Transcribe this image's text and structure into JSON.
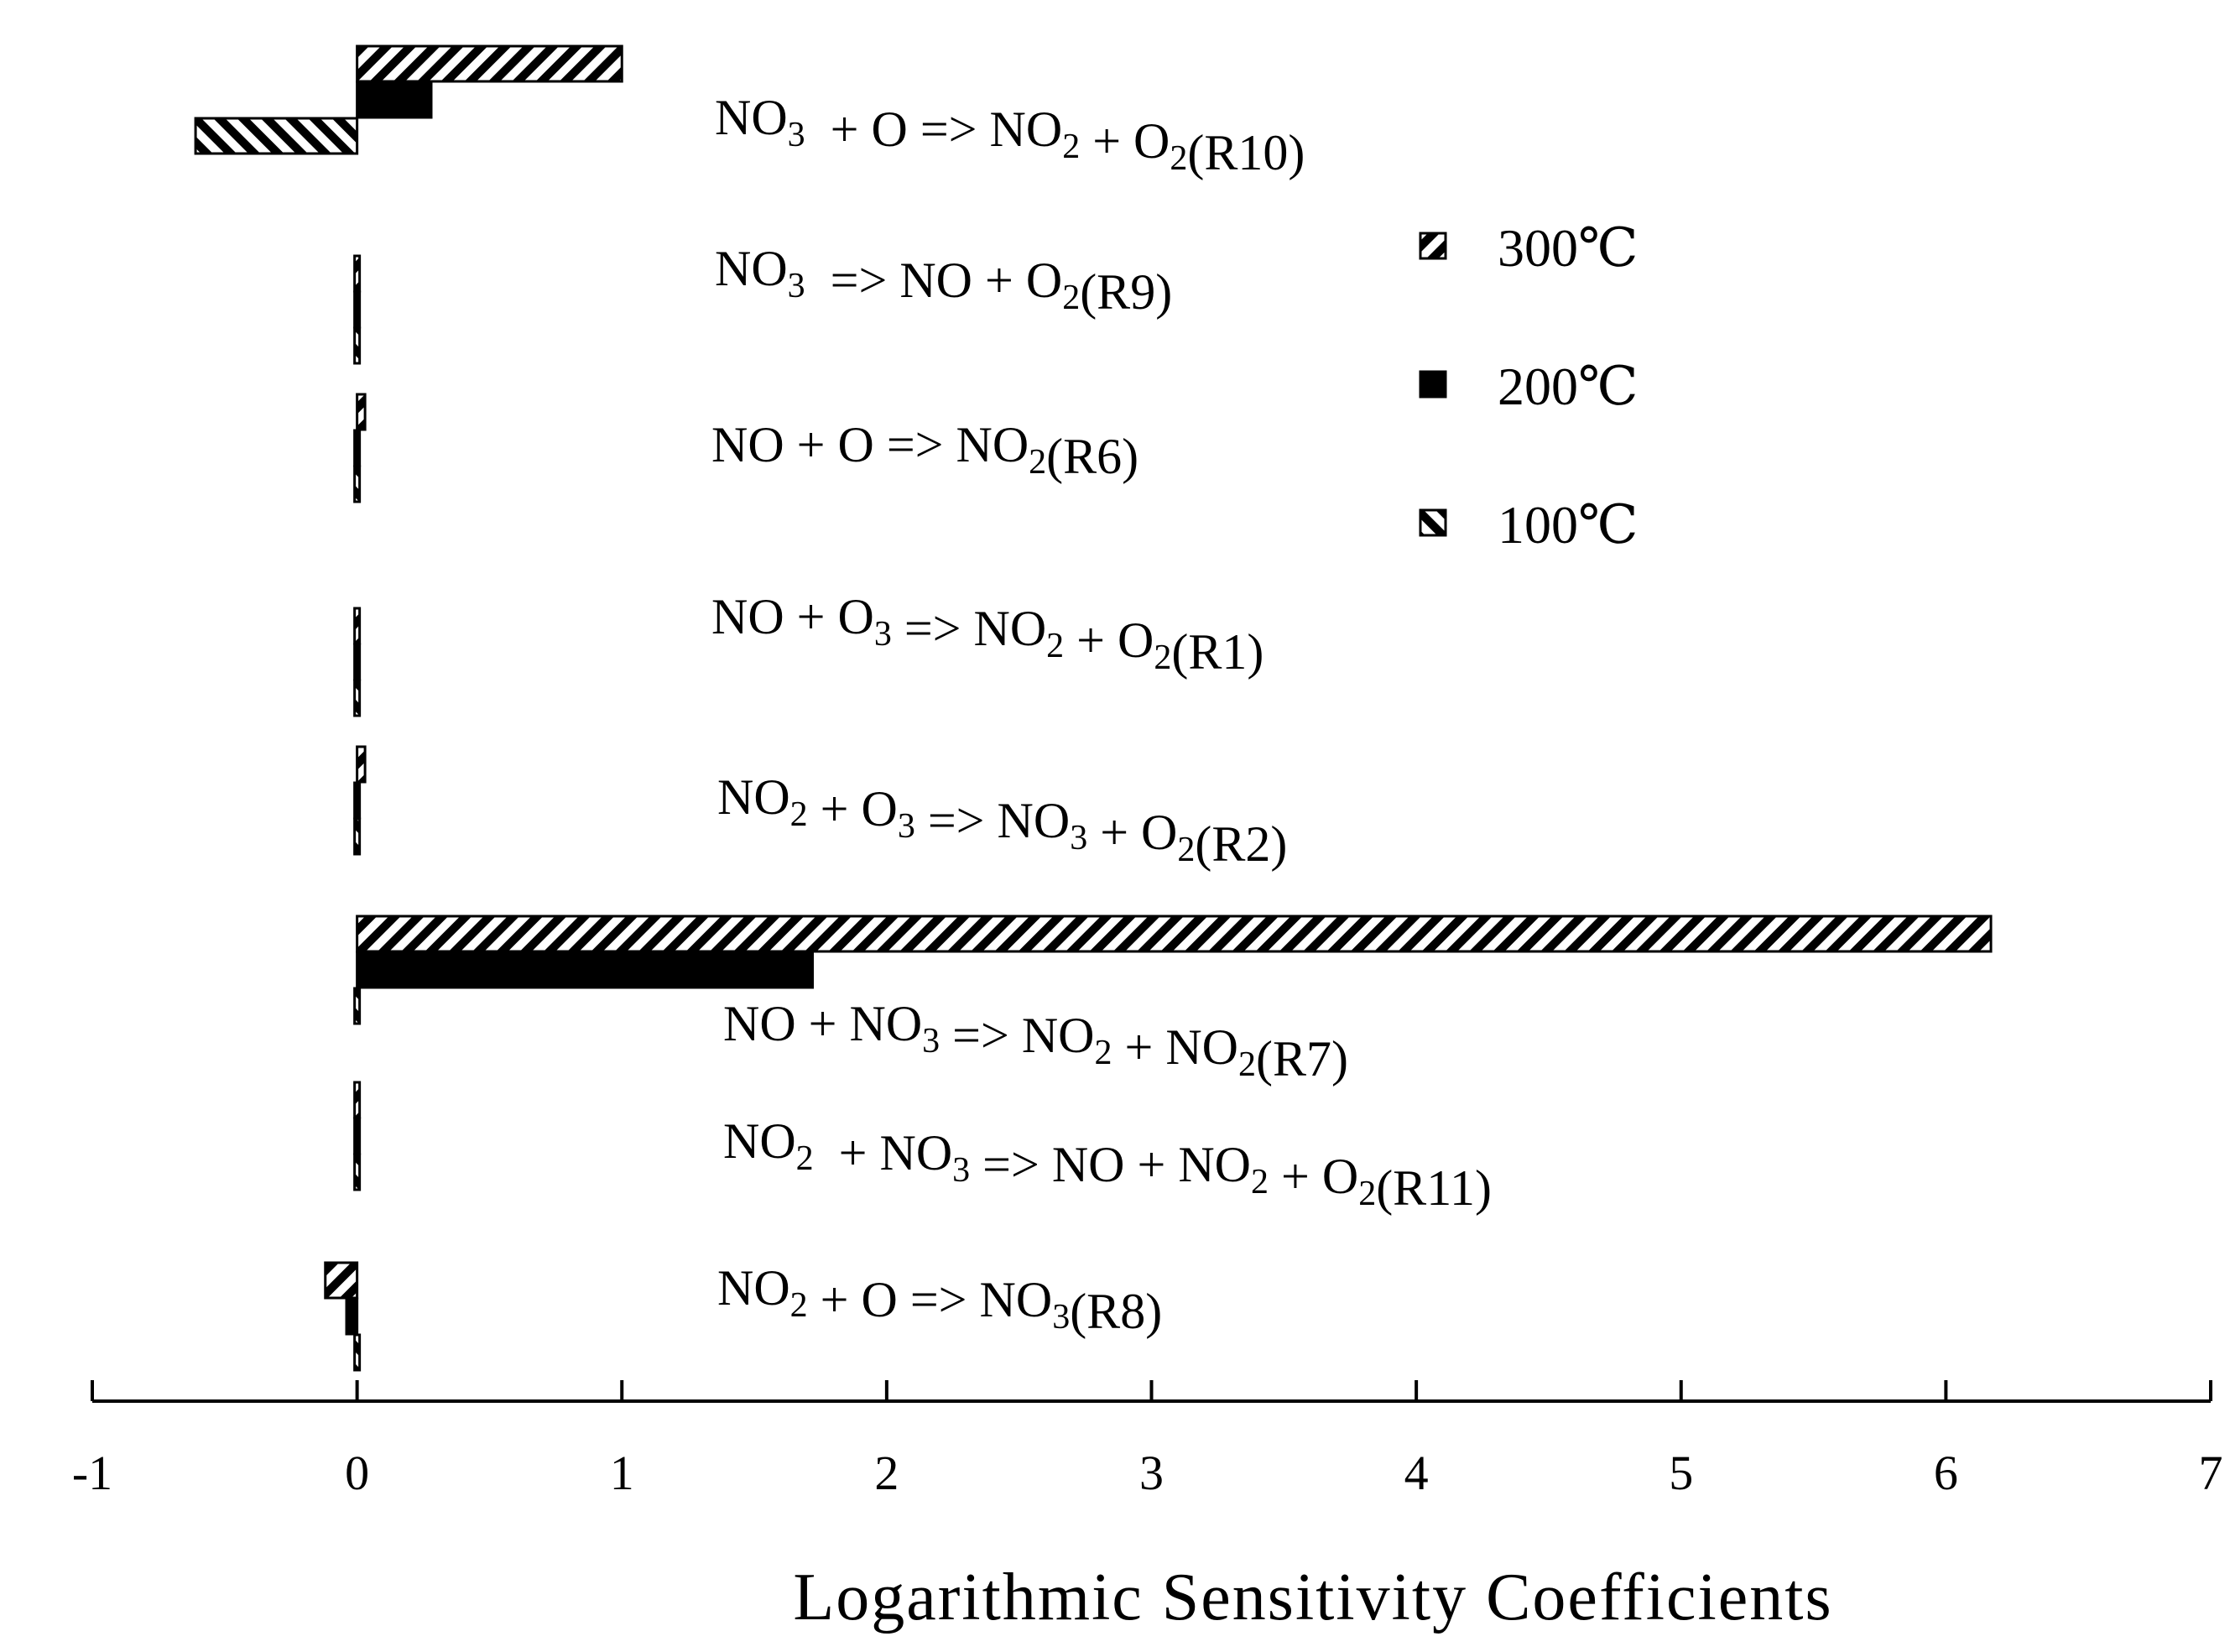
{
  "chart_data": {
    "type": "bar",
    "orientation": "horizontal",
    "xlabel": "Logarithmic Sensitivity Coefficients",
    "xlim": [
      -1,
      7
    ],
    "x_ticks": [
      "-1",
      "0",
      "1",
      "2",
      "3",
      "4",
      "5",
      "6",
      "7"
    ],
    "grid": false,
    "legend_position": "right",
    "categories": [
      [
        {
          "t": "NO"
        },
        {
          "t": "3",
          "sub": true
        },
        {
          "t": "  + O => NO"
        },
        {
          "t": "2",
          "sub": true
        },
        {
          "t": " + O"
        },
        {
          "t": "2",
          "sub": true
        },
        {
          "t": "(R10)"
        }
      ],
      [
        {
          "t": "NO"
        },
        {
          "t": "3",
          "sub": true
        },
        {
          "t": "  => NO + O"
        },
        {
          "t": "2",
          "sub": true
        },
        {
          "t": "(R9)"
        }
      ],
      [
        {
          "t": "NO + O => NO"
        },
        {
          "t": "2",
          "sub": true
        },
        {
          "t": "(R6)"
        }
      ],
      [
        {
          "t": "NO + O"
        },
        {
          "t": "3",
          "sub": true
        },
        {
          "t": " => NO"
        },
        {
          "t": "2",
          "sub": true
        },
        {
          "t": " + O"
        },
        {
          "t": "2",
          "sub": true
        },
        {
          "t": "(R1)"
        }
      ],
      [
        {
          "t": "NO"
        },
        {
          "t": "2",
          "sub": true
        },
        {
          "t": " + O"
        },
        {
          "t": "3",
          "sub": true
        },
        {
          "t": " => NO"
        },
        {
          "t": "3",
          "sub": true
        },
        {
          "t": " + O"
        },
        {
          "t": "2",
          "sub": true
        },
        {
          "t": "(R2)"
        }
      ],
      [
        {
          "t": "NO + NO"
        },
        {
          "t": "3",
          "sub": true
        },
        {
          "t": " => NO"
        },
        {
          "t": "2",
          "sub": true
        },
        {
          "t": " + NO"
        },
        {
          "t": "2",
          "sub": true
        },
        {
          "t": "(R7)"
        }
      ],
      [
        {
          "t": "NO"
        },
        {
          "t": "2",
          "sub": true
        },
        {
          "t": "  + NO"
        },
        {
          "t": "3",
          "sub": true
        },
        {
          "t": " => NO + NO"
        },
        {
          "t": "2",
          "sub": true
        },
        {
          "t": " + O"
        },
        {
          "t": "2",
          "sub": true
        },
        {
          "t": "(R11)"
        }
      ],
      [
        {
          "t": "NO"
        },
        {
          "t": "2",
          "sub": true
        },
        {
          "t": " + O => NO"
        },
        {
          "t": "3",
          "sub": true
        },
        {
          "t": "(R8)"
        }
      ]
    ],
    "series": [
      {
        "name": "300℃",
        "pattern": "hatch-back",
        "values": [
          1.0,
          0.0,
          0.03,
          0.0,
          0.03,
          6.17,
          0.0,
          -0.12
        ]
      },
      {
        "name": "200℃",
        "pattern": "solid",
        "values": [
          0.28,
          0.0,
          0.0,
          0.0,
          0.0,
          1.72,
          0.0,
          -0.04
        ]
      },
      {
        "name": "100℃",
        "pattern": "hatch-forward",
        "values": [
          -0.61,
          0.0,
          0.0,
          0.0,
          0.0,
          0.0,
          0.0,
          0.0
        ]
      }
    ]
  }
}
